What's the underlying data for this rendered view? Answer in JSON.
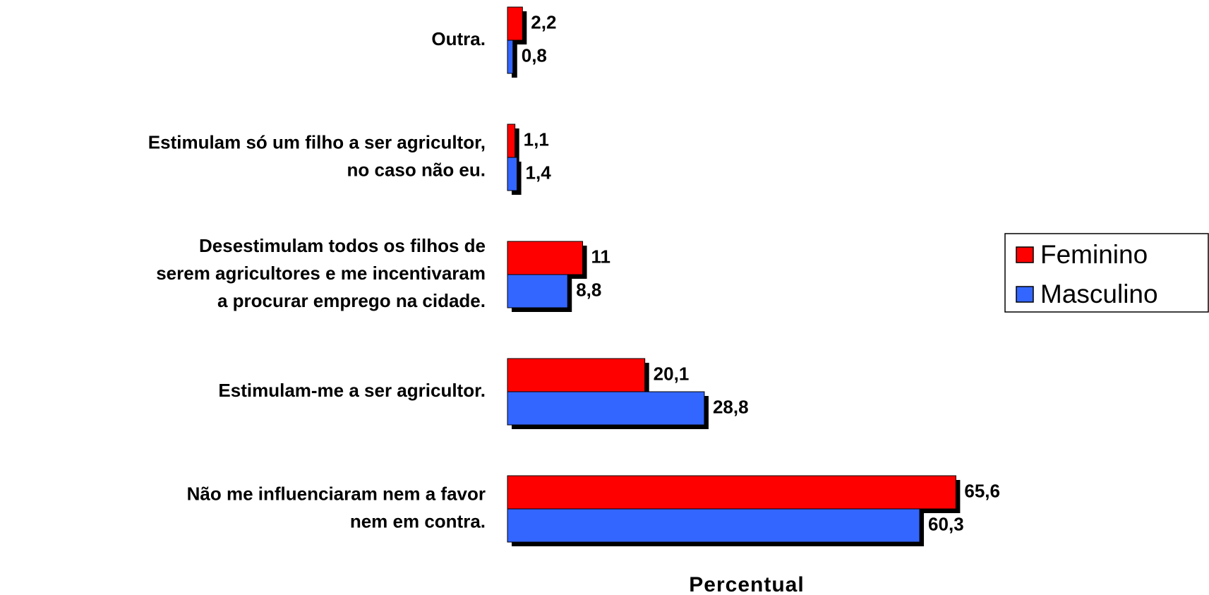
{
  "chart_data": {
    "type": "barh",
    "categories": [
      "Outra.",
      "Estimulam só um filho a ser agricultor,\nno caso não eu.",
      "Desestimulam todos os filhos de\nserem agricultores e me incentivaram\na procurar emprego na cidade.",
      "Estimulam-me a ser agricultor.",
      "Não me influenciaram nem a favor\nnem em contra."
    ],
    "series": [
      {
        "name": "Feminino",
        "color": "#ff0000",
        "values": [
          2.2,
          1.1,
          11,
          20.1,
          65.6
        ],
        "value_labels": [
          "2,2",
          "1,1",
          "11",
          "20,1",
          "65,6"
        ]
      },
      {
        "name": "Masculino",
        "color": "#3366ff",
        "values": [
          0.8,
          1.4,
          8.8,
          28.8,
          60.3
        ],
        "value_labels": [
          "0,8",
          "1,4",
          "8,8",
          "28,8",
          "60,3"
        ]
      }
    ],
    "xlabel": "Percentual",
    "xlim": [
      0,
      70
    ],
    "legend": "right"
  }
}
